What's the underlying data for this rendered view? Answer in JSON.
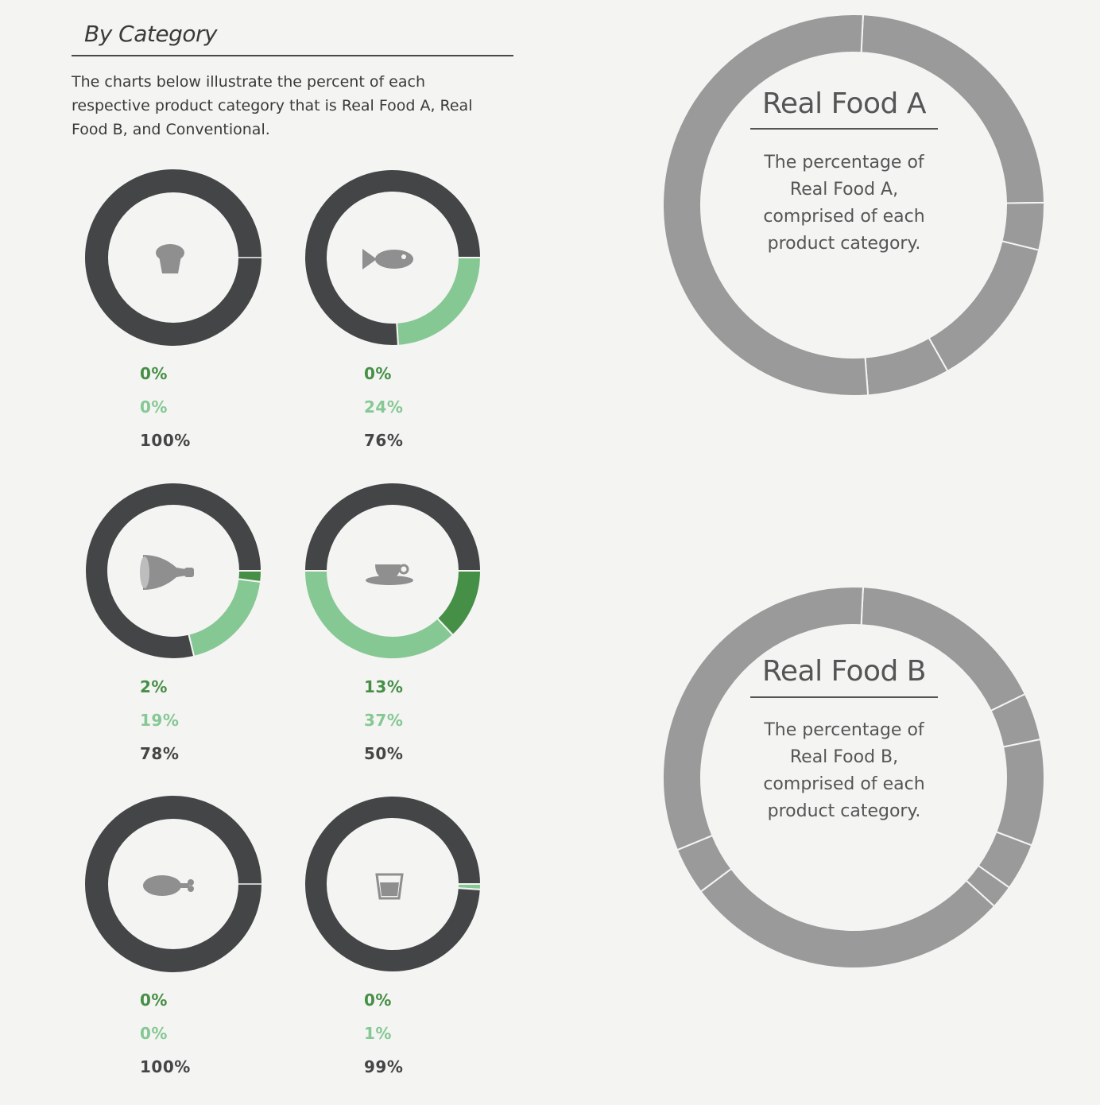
{
  "section": {
    "title": "By Category",
    "intro": "The charts below illustrate the percent of each respective product category that is Real Food A, Real Food B, and Conventional."
  },
  "colors": {
    "real_a": "#468f46",
    "real_b": "#86c893",
    "conventional": "#434547",
    "summary": "#9a9a9a"
  },
  "chart_data": [
    {
      "type": "pie",
      "icon": "muffin-icon",
      "values": [
        0,
        0,
        100
      ],
      "labels": [
        "0%",
        "0%",
        "100%"
      ]
    },
    {
      "type": "pie",
      "icon": "fish-icon",
      "values": [
        0,
        24,
        76
      ],
      "labels": [
        "0%",
        "24%",
        "76%"
      ]
    },
    {
      "type": "pie",
      "icon": "ham-icon",
      "values": [
        2,
        19,
        78
      ],
      "labels": [
        "2%",
        "19%",
        "78%"
      ]
    },
    {
      "type": "pie",
      "icon": "coffee-cup-icon",
      "values": [
        13,
        37,
        50
      ],
      "labels": [
        "13%",
        "37%",
        "50%"
      ]
    },
    {
      "type": "pie",
      "icon": "drumstick-icon",
      "values": [
        0,
        0,
        100
      ],
      "labels": [
        "0%",
        "0%",
        "100%"
      ]
    },
    {
      "type": "pie",
      "icon": "cup-icon",
      "values": [
        0,
        1,
        99
      ],
      "labels": [
        "0%",
        "1%",
        "99%"
      ]
    },
    {
      "type": "pie",
      "title": "Real Food A",
      "description": "The percentage of Real Food A, comprised of each product category.",
      "values": [
        24,
        4,
        13,
        7,
        52
      ]
    },
    {
      "type": "pie",
      "title": "Real Food B",
      "description": "The percentage of Real Food B, comprised of each product category.",
      "values": [
        17,
        4,
        9,
        4,
        2,
        28,
        4,
        32
      ]
    }
  ]
}
